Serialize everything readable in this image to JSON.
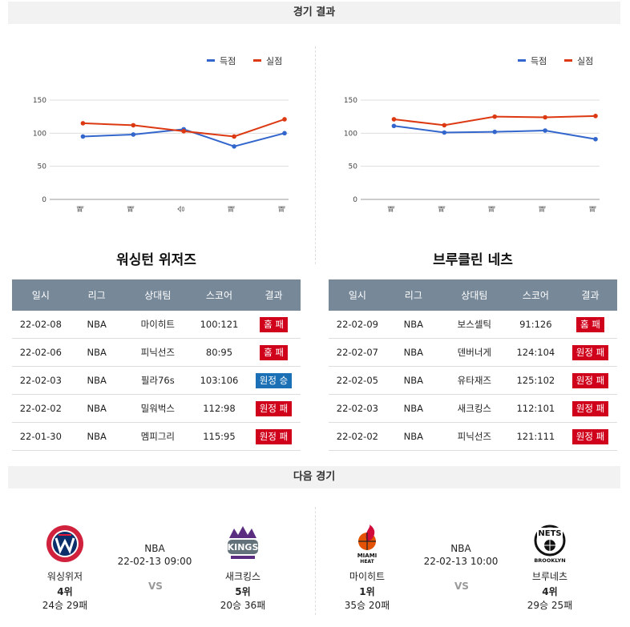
{
  "sections": {
    "results_header": "경기 결과",
    "next_header": "다음 경기"
  },
  "chart_data": [
    {
      "type": "line",
      "categories": [
        "패",
        "패",
        "승",
        "패",
        "패"
      ],
      "legend": [
        "득점",
        "실점"
      ],
      "legend_position": "top-right",
      "yticks": [
        "150",
        "100",
        "50",
        "0"
      ],
      "ylim": [
        0,
        150
      ],
      "grid": true,
      "series": [
        {
          "name": "득점",
          "color": "#3366cc",
          "values": [
            95,
            98,
            106,
            80,
            100
          ]
        },
        {
          "name": "실점",
          "color": "#dc3912",
          "values": [
            115,
            112,
            103,
            95,
            121
          ]
        }
      ]
    },
    {
      "type": "line",
      "categories": [
        "패",
        "패",
        "패",
        "패",
        "패"
      ],
      "legend": [
        "득점",
        "실점"
      ],
      "legend_position": "top-right",
      "yticks": [
        "150",
        "100",
        "50",
        "0"
      ],
      "ylim": [
        0,
        150
      ],
      "grid": true,
      "series": [
        {
          "name": "득점",
          "color": "#3366cc",
          "values": [
            111,
            101,
            102,
            104,
            91
          ]
        },
        {
          "name": "실점",
          "color": "#dc3912",
          "values": [
            121,
            112,
            125,
            124,
            126
          ]
        }
      ]
    }
  ],
  "team_left": {
    "title": "워싱턴 위저즈",
    "headers": [
      "일시",
      "리그",
      "상대팀",
      "스코어",
      "결과"
    ],
    "rows": [
      {
        "date": "22-02-08",
        "league": "NBA",
        "opponent": "마이히트",
        "score": "100:121",
        "result": "홈 패",
        "kind": "lose"
      },
      {
        "date": "22-02-06",
        "league": "NBA",
        "opponent": "피닉선즈",
        "score": "80:95",
        "result": "홈 패",
        "kind": "lose"
      },
      {
        "date": "22-02-03",
        "league": "NBA",
        "opponent": "필라76s",
        "score": "103:106",
        "result": "원정 승",
        "kind": "win"
      },
      {
        "date": "22-02-02",
        "league": "NBA",
        "opponent": "밀워벅스",
        "score": "112:98",
        "result": "원정 패",
        "kind": "lose"
      },
      {
        "date": "22-01-30",
        "league": "NBA",
        "opponent": "멤피그리",
        "score": "115:95",
        "result": "원정 패",
        "kind": "lose"
      }
    ]
  },
  "team_right": {
    "title": "브루클린 네츠",
    "headers": [
      "일시",
      "리그",
      "상대팀",
      "스코어",
      "결과"
    ],
    "rows": [
      {
        "date": "22-02-09",
        "league": "NBA",
        "opponent": "보스셀틱",
        "score": "91:126",
        "result": "홈 패",
        "kind": "lose"
      },
      {
        "date": "22-02-07",
        "league": "NBA",
        "opponent": "덴버너게",
        "score": "124:104",
        "result": "원정 패",
        "kind": "lose"
      },
      {
        "date": "22-02-05",
        "league": "NBA",
        "opponent": "유타재즈",
        "score": "125:102",
        "result": "원정 패",
        "kind": "lose"
      },
      {
        "date": "22-02-03",
        "league": "NBA",
        "opponent": "새크킹스",
        "score": "112:101",
        "result": "원정 패",
        "kind": "lose"
      },
      {
        "date": "22-02-02",
        "league": "NBA",
        "opponent": "피닉선즈",
        "score": "121:111",
        "result": "원정 패",
        "kind": "lose"
      }
    ]
  },
  "next_games": [
    {
      "league": "NBA",
      "datetime": "22-02-13 09:00",
      "vs": "VS",
      "home": {
        "name": "워싱위저",
        "rank": "4위",
        "record": "24승 29패",
        "logo": "washington-wizards-logo"
      },
      "away": {
        "name": "새크킹스",
        "rank": "5위",
        "record": "20승 36패",
        "logo": "sacramento-kings-logo"
      }
    },
    {
      "league": "NBA",
      "datetime": "22-02-13 10:00",
      "vs": "VS",
      "home": {
        "name": "마이히트",
        "rank": "1위",
        "record": "35승 20패",
        "logo": "miami-heat-logo"
      },
      "away": {
        "name": "브루네츠",
        "rank": "4위",
        "record": "29승 25패",
        "logo": "brooklyn-nets-logo"
      }
    }
  ],
  "logo_text": {
    "wizards": "WASHINGTON WIZARDS",
    "kings": "SACRAMENTO KINGS",
    "heat": "MIAMI HEAT",
    "nets": "NETS",
    "brooklyn": "BROOKLYN"
  }
}
